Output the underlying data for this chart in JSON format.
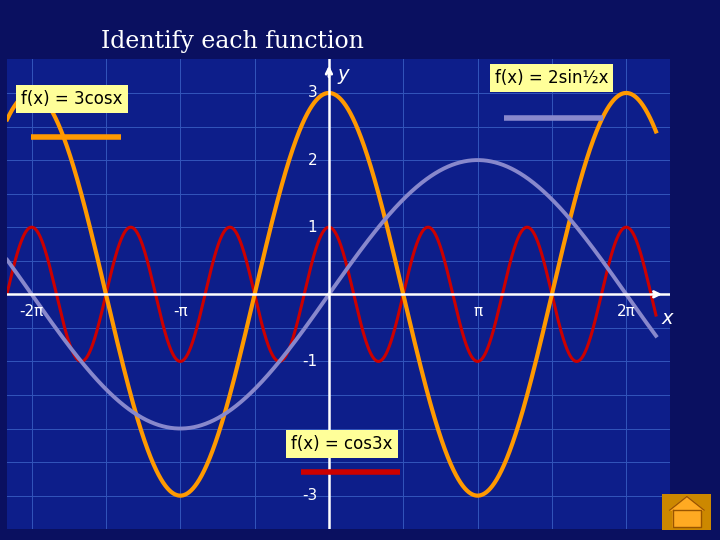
{
  "title": "Identify each function",
  "title_color": "#ffffff",
  "title_fontsize": 17,
  "header_color": "#0a1060",
  "background_color": "#0a1060",
  "plot_bg_color": "#0d1e8a",
  "grid_color": "#3355bb",
  "xlim": [
    -6.8,
    7.2
  ],
  "ylim": [
    -3.5,
    3.5
  ],
  "x_ticks": [
    -6.283185,
    -3.141593,
    3.141593,
    6.283185
  ],
  "x_tick_labels": [
    "-2π",
    "-π",
    "π",
    "2π"
  ],
  "y_ticks": [
    -3,
    -1,
    1,
    2,
    3
  ],
  "y_tick_labels": [
    "-3",
    "-1",
    "1",
    "2",
    "3"
  ],
  "func1_color": "#ff9900",
  "func1_label": "f(x) = 3cosx",
  "func2_color": "#cc0000",
  "func2_label": "f(x) = cos3x",
  "func3_color": "#8888cc",
  "func3_label": "f(x) = 2sin½x",
  "axis_color": "#ffffff",
  "tick_color": "#ffffff",
  "label_color": "#ffffff",
  "annotation_bg": "#ffff99",
  "annotation_fontsize": 12
}
